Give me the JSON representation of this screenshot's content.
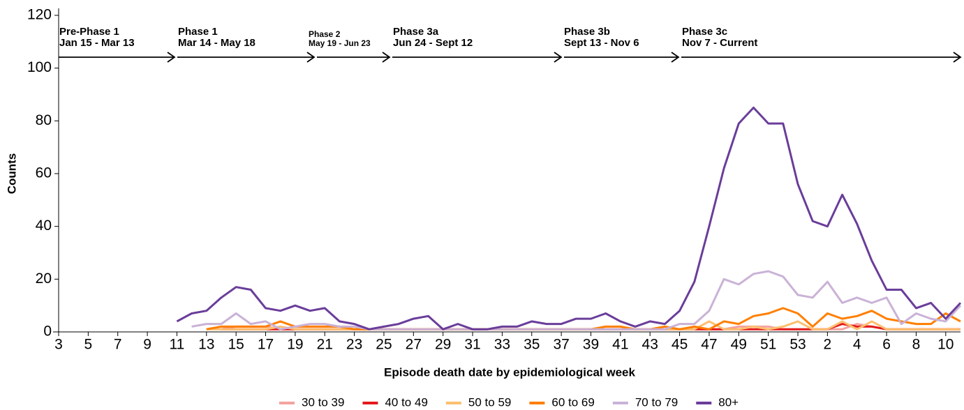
{
  "chart_data": {
    "type": "line",
    "x_label": "Episode death date by epidemiological week",
    "y_label": "Counts",
    "categories": [
      "3",
      null,
      "5",
      null,
      "7",
      null,
      "9",
      null,
      "11",
      null,
      "13",
      null,
      "15",
      null,
      "17",
      null,
      "19",
      null,
      "21",
      null,
      "23",
      null,
      "25",
      null,
      "27",
      null,
      "29",
      null,
      "31",
      null,
      "33",
      null,
      "35",
      null,
      "37",
      null,
      "39",
      null,
      "41",
      null,
      "43",
      null,
      "45",
      null,
      "47",
      null,
      "49",
      null,
      "51",
      null,
      "53",
      null,
      "2",
      null,
      "4",
      null,
      "6",
      null,
      "8",
      null,
      "10",
      null
    ],
    "ylim": [
      0,
      120
    ],
    "yticks": [
      0,
      20,
      40,
      60,
      80,
      100,
      120
    ],
    "phases": [
      {
        "name": "Pre-Phase 1",
        "dates": "Jan 15 - Mar 13"
      },
      {
        "name": "Phase 1",
        "dates": "Mar 14 - May 18"
      },
      {
        "name": "Phase 2",
        "dates": "May 19 - Jun 23"
      },
      {
        "name": "Phase 3a",
        "dates": "Jun 24 - Sept 12"
      },
      {
        "name": "Phase 3b",
        "dates": "Sept 13 - Nov 6"
      },
      {
        "name": "Phase 3c",
        "dates": "Nov 7 - Current"
      }
    ],
    "series": [
      {
        "name": "30 to 39",
        "color": "#f4a3a0",
        "values": [
          null,
          null,
          null,
          null,
          null,
          null,
          null,
          null,
          null,
          null,
          null,
          1,
          2,
          2,
          2,
          1,
          1,
          1,
          1,
          1,
          1,
          1,
          1,
          1,
          1,
          1,
          1,
          1,
          1,
          1,
          1,
          1,
          1,
          1,
          1,
          1,
          1,
          1,
          1,
          1,
          1,
          1,
          1,
          1,
          1,
          1,
          2,
          2,
          2,
          1,
          1,
          1,
          1,
          1,
          3,
          2,
          1,
          1,
          1,
          1,
          1,
          1
        ]
      },
      {
        "name": "40 to 49",
        "color": "#e31a1c",
        "values": [
          null,
          null,
          null,
          null,
          null,
          null,
          null,
          null,
          null,
          null,
          null,
          1,
          1,
          1,
          1,
          1,
          1,
          1,
          1,
          1,
          1,
          1,
          1,
          1,
          1,
          1,
          1,
          1,
          1,
          1,
          1,
          1,
          1,
          1,
          1,
          1,
          1,
          1,
          1,
          1,
          1,
          1,
          1,
          1,
          1,
          1,
          1,
          1,
          1,
          1,
          1,
          1,
          1,
          3,
          2,
          2,
          1,
          1,
          1,
          1,
          1,
          1
        ]
      },
      {
        "name": "50 to 59",
        "color": "#fdbf6f",
        "values": [
          null,
          null,
          null,
          null,
          null,
          null,
          null,
          null,
          null,
          null,
          1,
          1,
          1,
          1,
          1,
          2,
          1,
          1,
          1,
          1,
          1,
          1,
          1,
          1,
          1,
          1,
          1,
          1,
          1,
          1,
          1,
          1,
          1,
          1,
          1,
          1,
          1,
          1,
          1,
          1,
          1,
          1,
          1,
          1,
          4,
          1,
          1,
          2,
          1,
          2,
          4,
          1,
          1,
          4,
          1,
          4,
          1,
          1,
          1,
          1,
          1,
          1
        ]
      },
      {
        "name": "60 to 69",
        "color": "#ff7f00",
        "values": [
          null,
          null,
          null,
          null,
          null,
          null,
          null,
          null,
          null,
          null,
          1,
          2,
          2,
          2,
          2,
          4,
          2,
          2,
          2,
          2,
          1,
          1,
          1,
          1,
          1,
          1,
          1,
          1,
          1,
          1,
          1,
          1,
          1,
          1,
          1,
          1,
          1,
          2,
          2,
          1,
          1,
          2,
          1,
          2,
          1,
          4,
          3,
          6,
          7,
          9,
          7,
          2,
          7,
          5,
          6,
          8,
          5,
          4,
          3,
          3,
          7,
          4
        ]
      },
      {
        "name": "70 to 79",
        "color": "#cab2d6",
        "values": [
          null,
          null,
          null,
          null,
          null,
          null,
          null,
          null,
          null,
          2,
          3,
          3,
          7,
          3,
          4,
          1,
          2,
          3,
          3,
          2,
          2,
          1,
          1,
          1,
          1,
          1,
          1,
          1,
          1,
          1,
          1,
          1,
          1,
          1,
          1,
          1,
          1,
          1,
          1,
          1,
          1,
          1,
          3,
          3,
          8,
          20,
          18,
          22,
          23,
          21,
          14,
          13,
          19,
          11,
          13,
          11,
          13,
          3,
          7,
          5,
          4,
          10
        ]
      },
      {
        "name": "80+",
        "color": "#6a3d9a",
        "values": [
          null,
          null,
          null,
          null,
          null,
          null,
          null,
          null,
          4,
          7,
          8,
          13,
          17,
          16,
          9,
          8,
          10,
          8,
          9,
          4,
          3,
          1,
          2,
          3,
          5,
          6,
          1,
          3,
          1,
          1,
          2,
          2,
          4,
          3,
          3,
          5,
          5,
          7,
          4,
          2,
          4,
          3,
          8,
          19,
          40,
          62,
          79,
          85,
          79,
          79,
          56,
          42,
          40,
          52,
          41,
          27,
          16,
          16,
          9,
          11,
          5,
          11
        ]
      }
    ]
  }
}
